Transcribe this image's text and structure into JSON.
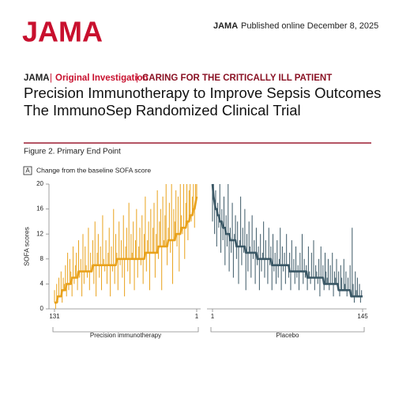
{
  "header": {
    "logo": "JAMA",
    "journal": "JAMA",
    "published": "Published online December 8, 2025",
    "kicker_journal": "JAMA",
    "kicker_type": "Original Investigation",
    "kicker_topic": "CARING FOR THE CRITICALLY ILL PATIENT",
    "title": "Precision Immunotherapy to Improve Sepsis Outcomes",
    "subtitle": "The ImmunoSep Randomized Clinical Trial"
  },
  "figure": {
    "title": "Figure 2. Primary End Point",
    "panel": "A",
    "subtitle": "Change from the baseline SOFA score",
    "ylabel": "SOFA scores"
  },
  "chart_data": [
    {
      "type": "change",
      "group": "Precision immunotherapy",
      "color": "#e9a21c",
      "xlim": [
        131,
        1
      ],
      "xticks": [
        131,
        1
      ],
      "ylim": [
        0,
        20
      ],
      "yticks": [
        0,
        4,
        8,
        12,
        16,
        20
      ],
      "baseline": [
        1,
        1,
        1,
        2,
        2,
        2,
        2,
        3,
        3,
        3,
        3,
        4,
        4,
        4,
        4,
        4,
        5,
        5,
        5,
        5,
        5,
        5,
        6,
        6,
        6,
        6,
        6,
        6,
        6,
        6,
        6,
        6,
        6,
        6,
        6,
        7,
        7,
        7,
        7,
        7,
        7,
        7,
        7,
        7,
        7,
        7,
        7,
        7,
        7,
        7,
        7,
        7,
        7,
        7,
        7,
        7,
        7,
        8,
        8,
        8,
        8,
        8,
        8,
        8,
        8,
        8,
        8,
        8,
        8,
        8,
        8,
        8,
        8,
        8,
        8,
        8,
        8,
        8,
        8,
        8,
        8,
        8,
        8,
        9,
        9,
        9,
        9,
        9,
        9,
        9,
        9,
        9,
        9,
        9,
        9,
        10,
        10,
        10,
        10,
        10,
        10,
        10,
        10,
        10,
        11,
        11,
        11,
        11,
        11,
        11,
        11,
        12,
        12,
        12,
        12,
        12,
        13,
        13,
        13,
        13,
        13,
        14,
        14,
        14,
        15,
        15,
        15,
        16,
        16,
        17,
        18
      ],
      "end": [
        3,
        0,
        4,
        1,
        5,
        2,
        6,
        1,
        5,
        4,
        7,
        2,
        9,
        3,
        8,
        6,
        2,
        10,
        4,
        7,
        9,
        3,
        11,
        5,
        8,
        2,
        12,
        4,
        10,
        7,
        5,
        13,
        3,
        9,
        6,
        11,
        4,
        14,
        2,
        9,
        12,
        5,
        10,
        3,
        15,
        8,
        6,
        11,
        4,
        9,
        13,
        2,
        10,
        6,
        16,
        4,
        12,
        9,
        3,
        14,
        7,
        11,
        5,
        15,
        2,
        10,
        13,
        6,
        17,
        4,
        12,
        9,
        14,
        3,
        11,
        16,
        5,
        10,
        13,
        7,
        15,
        4,
        12,
        18,
        6,
        11,
        14,
        3,
        16,
        9,
        13,
        17,
        5,
        12,
        19,
        8,
        14,
        16,
        3,
        18,
        11,
        15,
        20,
        7,
        13,
        17,
        9,
        20,
        4,
        16,
        14,
        19,
        10,
        18,
        6,
        20,
        15,
        12,
        20,
        8,
        17,
        20,
        11,
        19,
        20,
        14,
        18,
        20,
        13,
        20,
        20
      ]
    },
    {
      "type": "change",
      "group": "Placebo",
      "color": "#3b5866",
      "xlim": [
        1,
        145
      ],
      "xticks": [
        1,
        145
      ],
      "ylim": [
        0,
        20
      ],
      "yticks": [
        0,
        4,
        8,
        12,
        16,
        20
      ],
      "baseline": [
        20,
        18,
        17,
        16,
        16,
        15,
        15,
        14,
        14,
        14,
        13,
        13,
        13,
        12,
        12,
        12,
        12,
        11,
        11,
        11,
        11,
        11,
        11,
        10,
        10,
        10,
        10,
        10,
        10,
        10,
        10,
        10,
        9,
        9,
        9,
        9,
        9,
        9,
        9,
        9,
        9,
        9,
        9,
        8,
        8,
        8,
        8,
        8,
        8,
        8,
        8,
        8,
        8,
        8,
        8,
        8,
        8,
        7,
        7,
        7,
        7,
        7,
        7,
        7,
        7,
        7,
        7,
        7,
        7,
        7,
        7,
        7,
        7,
        7,
        6,
        6,
        6,
        6,
        6,
        6,
        6,
        6,
        6,
        6,
        6,
        6,
        6,
        6,
        6,
        6,
        6,
        5,
        5,
        5,
        5,
        5,
        5,
        5,
        5,
        5,
        5,
        5,
        5,
        5,
        5,
        5,
        5,
        4,
        4,
        4,
        4,
        4,
        4,
        4,
        4,
        4,
        4,
        4,
        4,
        4,
        4,
        3,
        3,
        3,
        3,
        3,
        3,
        3,
        3,
        3,
        3,
        3,
        3,
        2,
        2,
        2,
        2,
        2,
        2,
        2,
        2,
        2,
        2,
        2,
        2
      ],
      "end": [
        14,
        20,
        12,
        19,
        10,
        17,
        13,
        20,
        9,
        16,
        11,
        18,
        7,
        15,
        10,
        20,
        6,
        13,
        9,
        17,
        5,
        12,
        15,
        8,
        14,
        4,
        11,
        18,
        7,
        13,
        9,
        16,
        3,
        12,
        6,
        14,
        10,
        5,
        15,
        8,
        11,
        4,
        13,
        7,
        10,
        3,
        12,
        6,
        9,
        14,
        5,
        11,
        8,
        4,
        13,
        7,
        10,
        3,
        12,
        6,
        9,
        4,
        11,
        5,
        8,
        13,
        3,
        10,
        6,
        9,
        4,
        12,
        7,
        5,
        9,
        3,
        11,
        6,
        8,
        4,
        10,
        5,
        7,
        3,
        9,
        6,
        12,
        4,
        8,
        5,
        7,
        3,
        10,
        6,
        4,
        9,
        5,
        11,
        3,
        7,
        6,
        4,
        8,
        2,
        10,
        5,
        7,
        3,
        9,
        6,
        5,
        8,
        3,
        7,
        4,
        9,
        2,
        6,
        5,
        8,
        4,
        6,
        2,
        7,
        5,
        3,
        8,
        4,
        6,
        2,
        5,
        3,
        7,
        2,
        13,
        4,
        1,
        6,
        3,
        5,
        2,
        4,
        1,
        3,
        2
      ]
    }
  ]
}
